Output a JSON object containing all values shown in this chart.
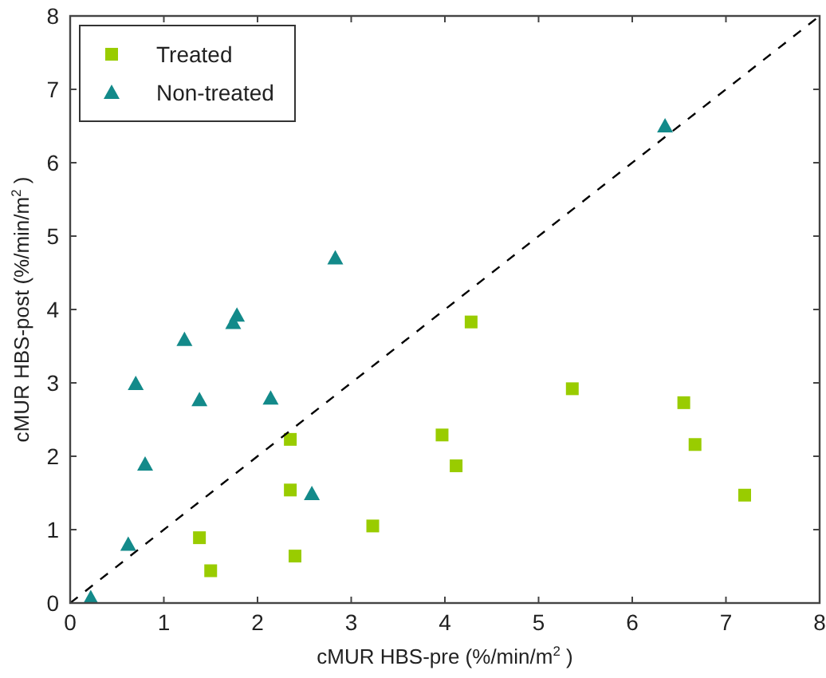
{
  "chart_data": {
    "type": "scatter",
    "xlabel": "cMUR HBS-pre (%/min/m$^{2}$ )",
    "ylabel": "cMUR HBS-post (%/min/m$^{2}$ )",
    "xlim": [
      0,
      8
    ],
    "ylim": [
      0,
      8
    ],
    "xticks": [
      0,
      1,
      2,
      3,
      4,
      5,
      6,
      7,
      8
    ],
    "yticks": [
      0,
      1,
      2,
      3,
      4,
      5,
      6,
      7,
      8
    ],
    "grid": false,
    "legend": "top left",
    "series": [
      {
        "name": "Treated",
        "color": "#99cc00",
        "marker": "square",
        "x": [
          1.38,
          1.5,
          2.35,
          2.35,
          2.4,
          3.23,
          3.97,
          4.12,
          4.28,
          5.36,
          6.55,
          6.67,
          7.2
        ],
        "values": [
          0.89,
          0.44,
          2.23,
          1.54,
          0.64,
          1.05,
          2.29,
          1.87,
          3.83,
          2.92,
          2.73,
          2.16,
          1.47
        ]
      },
      {
        "name": "Non-treated",
        "color": "#138a8a",
        "marker": "triangle",
        "x": [
          0.22,
          0.62,
          0.7,
          0.8,
          1.22,
          1.38,
          1.74,
          1.78,
          2.14,
          2.58,
          2.83,
          6.35
        ],
        "values": [
          0.07,
          0.8,
          2.99,
          1.89,
          3.59,
          2.77,
          3.82,
          3.92,
          2.79,
          1.49,
          4.7,
          6.5
        ]
      },
      {
        "type": "line",
        "color": "#000000",
        "line_style": "dashed",
        "marker": "none",
        "x": [
          0,
          8
        ],
        "values": [
          0,
          8
        ]
      }
    ]
  }
}
